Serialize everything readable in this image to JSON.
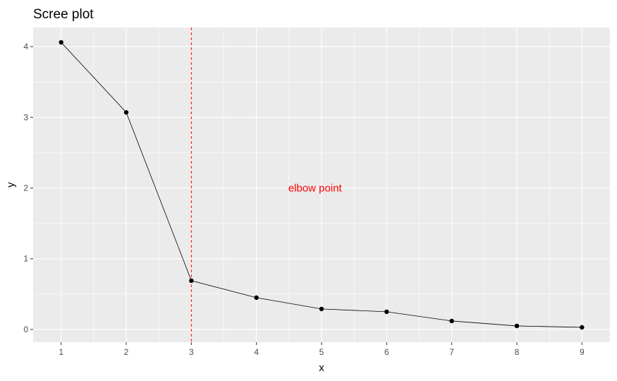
{
  "chart_data": {
    "type": "line",
    "title": "Scree plot",
    "xlabel": "x",
    "ylabel": "y",
    "x": [
      1,
      2,
      3,
      4,
      5,
      6,
      7,
      8,
      9
    ],
    "y": [
      4.06,
      3.07,
      0.69,
      0.45,
      0.29,
      0.25,
      0.12,
      0.05,
      0.03
    ],
    "xlim": [
      0.57,
      9.43
    ],
    "ylim": [
      -0.18,
      4.27
    ],
    "x_ticks": [
      1,
      2,
      3,
      4,
      5,
      6,
      7,
      8,
      9
    ],
    "y_ticks": [
      0,
      1,
      2,
      3,
      4
    ],
    "grid": true,
    "markers": true,
    "vline": {
      "x": 3,
      "style": "dashed",
      "color": "#ff0000"
    },
    "annotation": {
      "text": "elbow point",
      "x": 4.9,
      "y": 2,
      "color": "#ff0000"
    },
    "colors": {
      "panel": "#ebebeb",
      "grid_major": "#ffffff",
      "line": "#000000",
      "point": "#000000"
    }
  }
}
